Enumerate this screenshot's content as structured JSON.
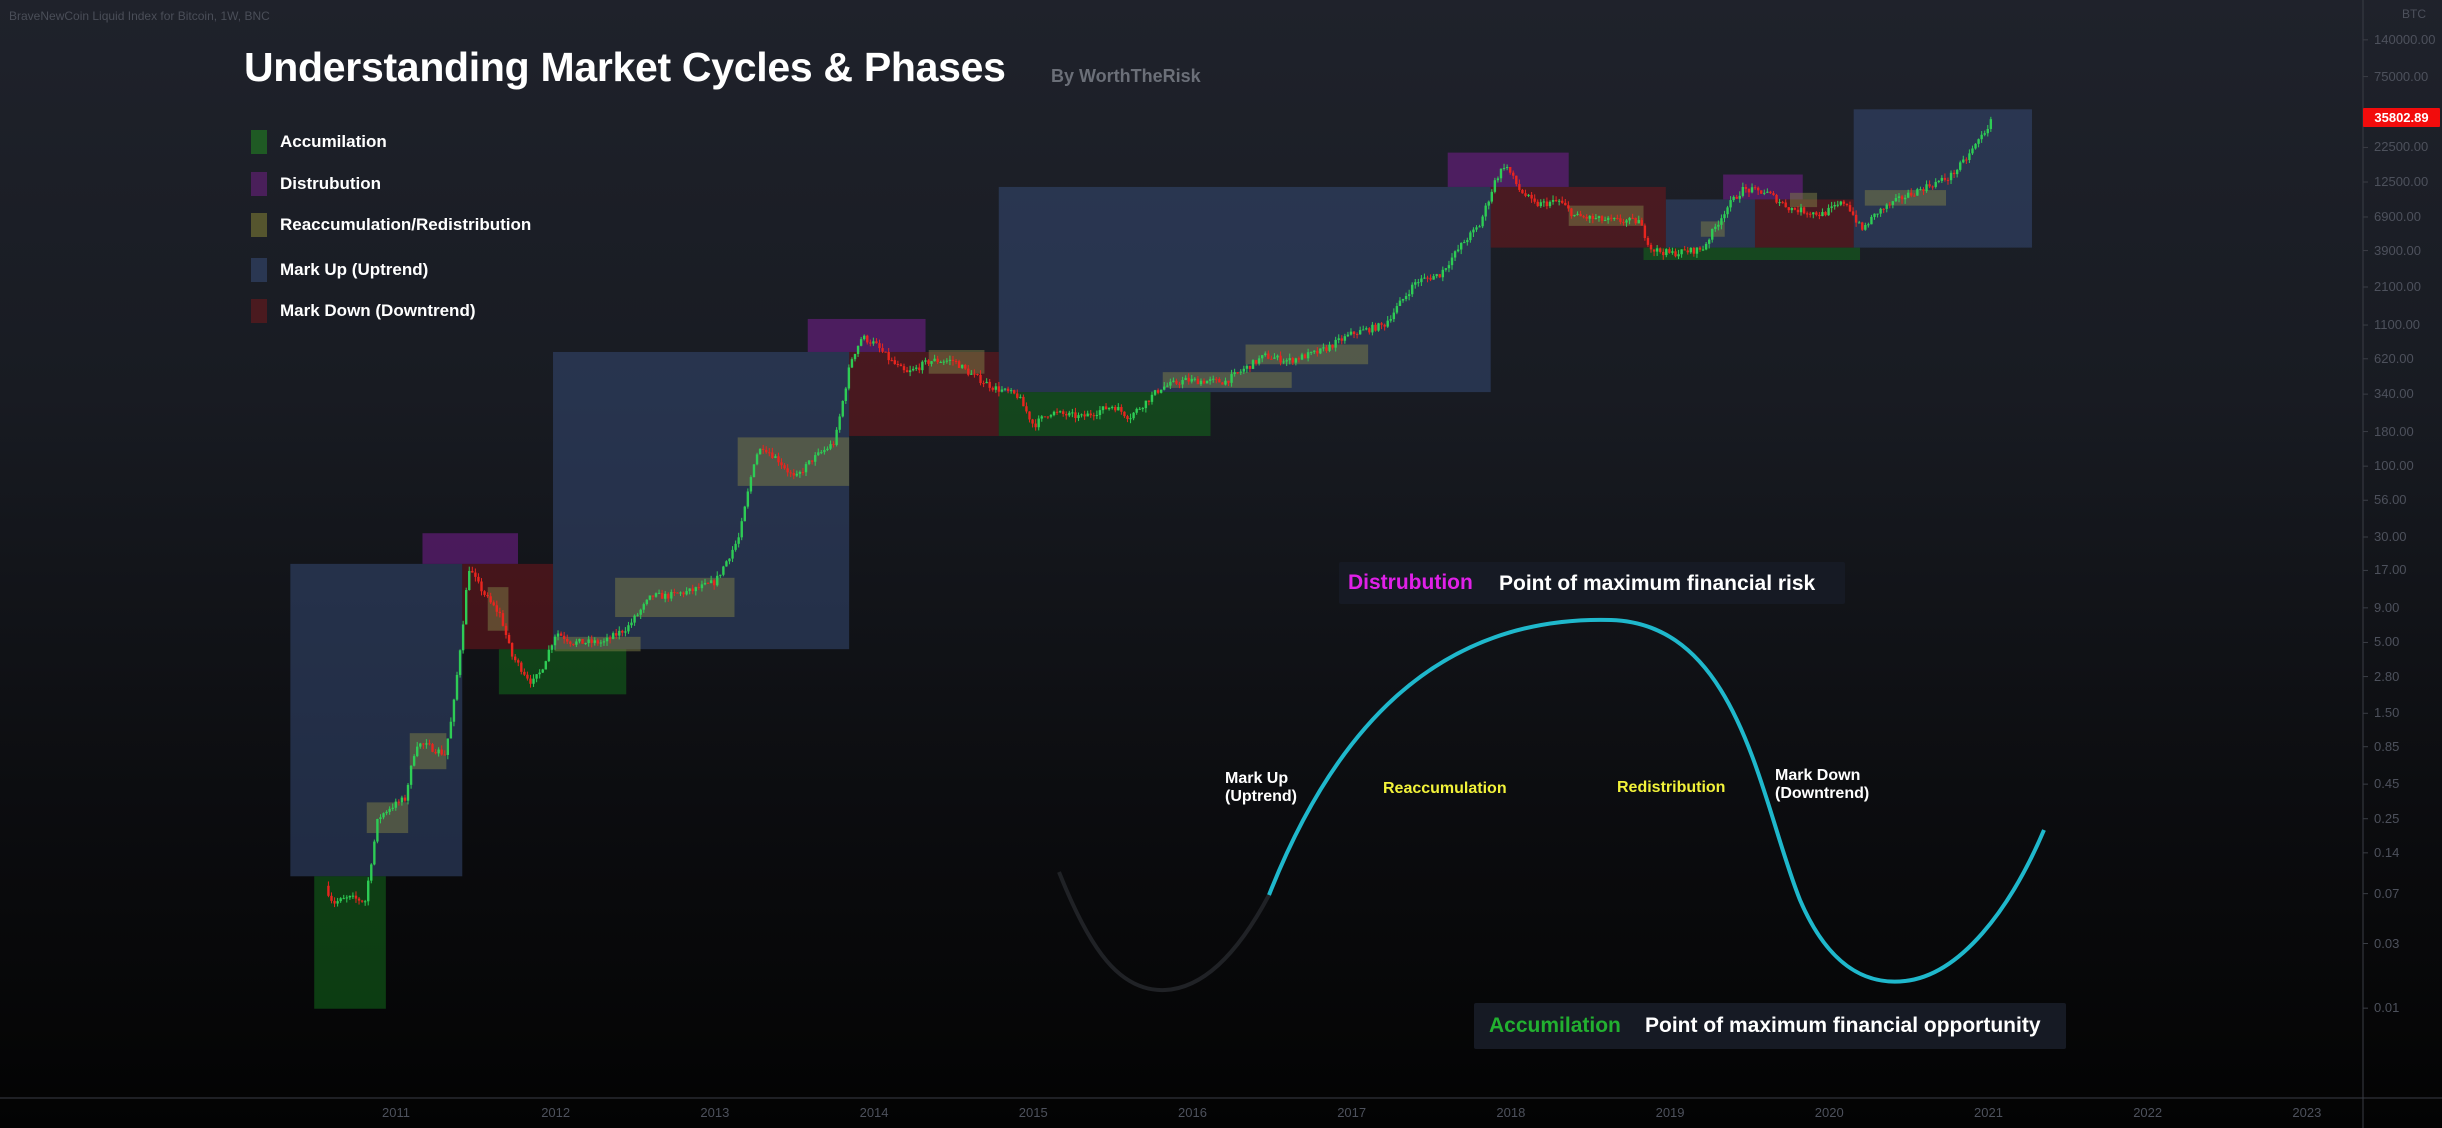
{
  "header": {
    "symbol": "BraveNewCoin Liquid Index for Bitcoin, 1W, BNC",
    "title": "Understanding Market Cycles & Phases",
    "byline": "By WorthTheRisk"
  },
  "legend": [
    {
      "label": "Accumilation",
      "color": "#1f5a24"
    },
    {
      "label": "Distrubution",
      "color": "#4a1f5a"
    },
    {
      "label": "Reaccumulation/Redistribution",
      "color": "#55552e"
    },
    {
      "label": "Mark Up (Uptrend)",
      "color": "#2a3752"
    },
    {
      "label": "Mark Down (Downtrend)",
      "color": "#4a1a1f"
    }
  ],
  "annotations": {
    "top": {
      "key": "Distrubution",
      "text": "Point of maximum financial risk",
      "key_color": "#e020e8"
    },
    "bottom": {
      "key": "Accumilation",
      "text": "Point of maximum financial opportunity",
      "key_color": "#22b030"
    },
    "curve_labels": {
      "markup": "Mark Up\n(Uptrend)",
      "reaccumulation": "Reaccumulation",
      "redistribution": "Redistribution",
      "markdown": "Mark Down\n(Downtrend)"
    },
    "curve_color": "#1fb8cc"
  },
  "price_axis": {
    "unit": "BTC",
    "labels": [
      "140000.00",
      "75000.00",
      "22500.00",
      "12500.00",
      "6900.00",
      "3900.00",
      "2100.00",
      "1100.00",
      "620.00",
      "340.00",
      "180.00",
      "100.00",
      "56.00",
      "30.00",
      "17.00",
      "9.00",
      "5.00",
      "2.80",
      "1.50",
      "0.85",
      "0.45",
      "0.25",
      "0.14",
      "0.07",
      "0.03",
      "0.01"
    ],
    "last_price": "35802.89"
  },
  "chart_data": {
    "type": "candlestick",
    "title": "Understanding Market Cycles & Phases",
    "xlabel": "",
    "ylabel": "BTC",
    "yscale": "log",
    "ylim": [
      0.006,
      260000
    ],
    "xlim": [
      2009.5,
      2023.6
    ],
    "x_ticks": [
      "2011",
      "2012",
      "2013",
      "2014",
      "2015",
      "2016",
      "2017",
      "2018",
      "2019",
      "2020",
      "2021",
      "2022",
      "2023"
    ],
    "y_ticks": [
      140000,
      75000,
      22500,
      12500,
      6900,
      3900,
      2100,
      1100,
      620,
      340,
      180,
      100,
      56,
      30,
      17,
      9,
      5,
      2.8,
      1.5,
      0.85,
      0.45,
      0.25,
      0.14,
      0.07,
      0.03,
      0.01
    ],
    "price_path": [
      [
        2010.55,
        0.08
      ],
      [
        2010.6,
        0.06
      ],
      [
        2010.7,
        0.065
      ],
      [
        2010.8,
        0.062
      ],
      [
        2010.88,
        0.25
      ],
      [
        2010.95,
        0.3
      ],
      [
        2011.05,
        0.35
      ],
      [
        2011.12,
        0.9
      ],
      [
        2011.2,
        0.85
      ],
      [
        2011.3,
        0.75
      ],
      [
        2011.35,
        1.5
      ],
      [
        2011.42,
        8
      ],
      [
        2011.45,
        18
      ],
      [
        2011.5,
        14
      ],
      [
        2011.58,
        10
      ],
      [
        2011.65,
        8
      ],
      [
        2011.72,
        4
      ],
      [
        2011.85,
        2.5
      ],
      [
        2011.9,
        3
      ],
      [
        2012.0,
        6
      ],
      [
        2012.1,
        5
      ],
      [
        2012.3,
        5
      ],
      [
        2012.45,
        6.5
      ],
      [
        2012.6,
        11
      ],
      [
        2012.7,
        11
      ],
      [
        2012.85,
        12
      ],
      [
        2013.0,
        14
      ],
      [
        2013.15,
        30
      ],
      [
        2013.25,
        120
      ],
      [
        2013.3,
        140
      ],
      [
        2013.4,
        110
      ],
      [
        2013.5,
        80
      ],
      [
        2013.6,
        110
      ],
      [
        2013.75,
        150
      ],
      [
        2013.85,
        600
      ],
      [
        2013.92,
        900
      ],
      [
        2014.0,
        800
      ],
      [
        2014.1,
        600
      ],
      [
        2014.2,
        480
      ],
      [
        2014.35,
        600
      ],
      [
        2014.5,
        600
      ],
      [
        2014.6,
        480
      ],
      [
        2014.75,
        380
      ],
      [
        2014.9,
        330
      ],
      [
        2015.0,
        200
      ],
      [
        2015.1,
        250
      ],
      [
        2015.3,
        230
      ],
      [
        2015.5,
        280
      ],
      [
        2015.6,
        230
      ],
      [
        2015.8,
        380
      ],
      [
        2015.95,
        430
      ],
      [
        2016.2,
        420
      ],
      [
        2016.45,
        650
      ],
      [
        2016.6,
        600
      ],
      [
        2016.8,
        700
      ],
      [
        2017.0,
        950
      ],
      [
        2017.2,
        1100
      ],
      [
        2017.4,
        2300
      ],
      [
        2017.55,
        2600
      ],
      [
        2017.7,
        4500
      ],
      [
        2017.8,
        6000
      ],
      [
        2017.9,
        13000
      ],
      [
        2017.96,
        17000
      ],
      [
        2018.05,
        11000
      ],
      [
        2018.15,
        8500
      ],
      [
        2018.3,
        9000
      ],
      [
        2018.4,
        7000
      ],
      [
        2018.6,
        6500
      ],
      [
        2018.8,
        6400
      ],
      [
        2018.88,
        4000
      ],
      [
        2019.0,
        3700
      ],
      [
        2019.2,
        4000
      ],
      [
        2019.35,
        8000
      ],
      [
        2019.45,
        11000
      ],
      [
        2019.6,
        10500
      ],
      [
        2019.75,
        8000
      ],
      [
        2019.95,
        7200
      ],
      [
        2020.1,
        9000
      ],
      [
        2020.2,
        5500
      ],
      [
        2020.3,
        7500
      ],
      [
        2020.45,
        9500
      ],
      [
        2020.6,
        11500
      ],
      [
        2020.75,
        13500
      ],
      [
        2020.85,
        18000
      ],
      [
        2020.95,
        27000
      ],
      [
        2021.02,
        35802.89
      ]
    ],
    "phases": [
      {
        "type": "markup",
        "start": 2010.33,
        "end": 2011.41,
        "low": 0.094,
        "high": 19
      },
      {
        "type": "markup",
        "start": 2011.98,
        "end": 2013.84,
        "low": 4.46,
        "high": 696
      },
      {
        "type": "markup",
        "start": 2014.78,
        "end": 2017.87,
        "low": 352,
        "high": 11500
      },
      {
        "type": "markup",
        "start": 2018.97,
        "end": 2019.53,
        "low": 4100,
        "high": 9300
      },
      {
        "type": "markup",
        "start": 2020.15,
        "end": 2021.27,
        "low": 4100,
        "high": 43000
      },
      {
        "type": "markdown",
        "start": 2011.41,
        "end": 2011.98,
        "low": 4.46,
        "high": 19
      },
      {
        "type": "markdown",
        "start": 2013.84,
        "end": 2014.78,
        "low": 167,
        "high": 696
      },
      {
        "type": "markdown",
        "start": 2017.87,
        "end": 2018.97,
        "low": 4100,
        "high": 11500
      },
      {
        "type": "markdown",
        "start": 2019.53,
        "end": 2020.15,
        "low": 4100,
        "high": 9300
      },
      {
        "type": "accumulation",
        "start": 2010.48,
        "end": 2010.93,
        "low": 0.0099,
        "high": 0.094
      },
      {
        "type": "accumulation",
        "start": 2011.64,
        "end": 2012.44,
        "low": 2.07,
        "high": 4.46
      },
      {
        "type": "accumulation",
        "start": 2014.78,
        "end": 2016.11,
        "low": 167,
        "high": 352
      },
      {
        "type": "accumulation",
        "start": 2018.83,
        "end": 2020.19,
        "low": 3320,
        "high": 4100
      },
      {
        "type": "distribution",
        "start": 2011.16,
        "end": 2011.76,
        "low": 19,
        "high": 32
      },
      {
        "type": "distribution",
        "start": 2013.58,
        "end": 2014.32,
        "low": 696,
        "high": 1220
      },
      {
        "type": "distribution",
        "start": 2017.6,
        "end": 2018.36,
        "low": 11500,
        "high": 20600
      },
      {
        "type": "distribution",
        "start": 2019.33,
        "end": 2019.83,
        "low": 9300,
        "high": 14200
      },
      {
        "type": "reaccumulation",
        "start": 2010.81,
        "end": 2011.07,
        "low": 0.196,
        "high": 0.33
      },
      {
        "type": "reaccumulation",
        "start": 2011.08,
        "end": 2011.31,
        "low": 0.58,
        "high": 1.07
      },
      {
        "type": "reaccumulation",
        "start": 2011.57,
        "end": 2011.7,
        "low": 6.1,
        "high": 12.8
      },
      {
        "type": "reaccumulation",
        "start": 2011.99,
        "end": 2012.53,
        "low": 4.3,
        "high": 5.5
      },
      {
        "type": "reaccumulation",
        "start": 2012.37,
        "end": 2013.12,
        "low": 7.7,
        "high": 15
      },
      {
        "type": "reaccumulation",
        "start": 2013.14,
        "end": 2013.84,
        "low": 71.5,
        "high": 163
      },
      {
        "type": "reaccumulation",
        "start": 2014.34,
        "end": 2014.69,
        "low": 481,
        "high": 720
      },
      {
        "type": "reaccumulation",
        "start": 2015.81,
        "end": 2016.62,
        "low": 378,
        "high": 494
      },
      {
        "type": "reaccumulation",
        "start": 2016.33,
        "end": 2017.1,
        "low": 565,
        "high": 790
      },
      {
        "type": "reaccumulation",
        "start": 2018.36,
        "end": 2018.83,
        "low": 5930,
        "high": 8370
      },
      {
        "type": "reaccumulation",
        "start": 2019.19,
        "end": 2019.34,
        "low": 4930,
        "high": 6400
      },
      {
        "type": "reaccumulation",
        "start": 2019.75,
        "end": 2019.92,
        "low": 8160,
        "high": 10400
      },
      {
        "type": "reaccumulation",
        "start": 2020.22,
        "end": 2020.73,
        "low": 8370,
        "high": 10900
      }
    ],
    "phase_colors": {
      "markup": "rgba(52,72,115,0.55)",
      "markdown": "rgba(120,22,28,0.5)",
      "accumulation": "rgba(18,105,28,0.55)",
      "distribution": "rgba(110,30,135,0.6)",
      "reaccumulation": "rgba(125,125,70,0.5)"
    },
    "up_color": "#2ecc55",
    "down_color": "#e8251f"
  }
}
